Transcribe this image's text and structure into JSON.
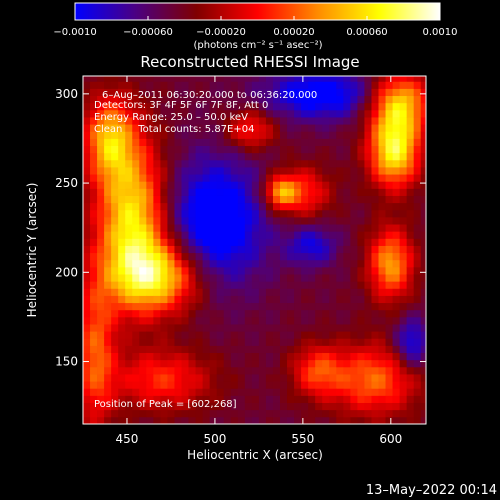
{
  "chart_data": {
    "type": "heatmap",
    "title": "Reconstructed RHESSI Image",
    "xlabel": "Heliocentric X (arcsec)",
    "ylabel": "Heliocentric Y (arcsec)",
    "xlim": [
      425,
      620
    ],
    "ylim": [
      115,
      310
    ],
    "xticks": [
      450,
      500,
      550,
      600
    ],
    "yticks": [
      150,
      200,
      250,
      300
    ],
    "colorbar": {
      "min": -0.001,
      "max": 0.001,
      "ticks": [
        "−0.0010",
        "−0.00060",
        "−0.00020",
        "0.00020",
        "0.00060",
        "0.0010"
      ],
      "tick_values": [
        -0.001,
        -0.0006,
        -0.0002,
        0.0002,
        0.0006,
        0.001
      ],
      "label": "(photons cm⁻² s⁻¹ asec⁻²)",
      "colors": [
        "#0000ff",
        "#4b0082",
        "#800000",
        "#ff0000",
        "#ff8c00",
        "#ffff00",
        "#ffffff"
      ]
    },
    "annotations": [
      "6–Aug–2011 06:30:20.000 to 06:36:20.000",
      "Detectors: 3F 4F 5F 6F 7F 8F, Att 0",
      "Energy Range: 25.0 – 50.0 keV",
      "Clean     Total counts: 5.87E+04",
      "Position of Peak = [602,268]"
    ],
    "peak": [
      602,
      268
    ],
    "emission_blobs": [
      {
        "x": 453,
        "y": 230,
        "sx": 14,
        "sy": 30,
        "v": 0.00095
      },
      {
        "x": 468,
        "y": 198,
        "sx": 18,
        "sy": 14,
        "v": 0.00085
      },
      {
        "x": 440,
        "y": 275,
        "sx": 10,
        "sy": 16,
        "v": 0.0007
      },
      {
        "x": 432,
        "y": 155,
        "sx": 8,
        "sy": 30,
        "v": 0.0005
      },
      {
        "x": 602,
        "y": 268,
        "sx": 10,
        "sy": 14,
        "v": 0.001
      },
      {
        "x": 605,
        "y": 295,
        "sx": 12,
        "sy": 12,
        "v": 0.0008
      },
      {
        "x": 600,
        "y": 205,
        "sx": 9,
        "sy": 14,
        "v": 0.0007
      },
      {
        "x": 590,
        "y": 140,
        "sx": 18,
        "sy": 14,
        "v": 0.00055
      },
      {
        "x": 470,
        "y": 140,
        "sx": 20,
        "sy": 12,
        "v": 0.0004
      },
      {
        "x": 520,
        "y": 280,
        "sx": 10,
        "sy": 8,
        "v": 0.0004
      },
      {
        "x": 548,
        "y": 245,
        "sx": 12,
        "sy": 10,
        "v": 0.00045
      },
      {
        "x": 537,
        "y": 245,
        "sx": 6,
        "sy": 6,
        "v": 0.0005
      },
      {
        "x": 558,
        "y": 145,
        "sx": 10,
        "sy": 10,
        "v": 0.0004
      },
      {
        "x": 500,
        "y": 228,
        "sx": 20,
        "sy": 25,
        "v": -0.0009
      },
      {
        "x": 560,
        "y": 300,
        "sx": 22,
        "sy": 10,
        "v": -0.0008
      },
      {
        "x": 555,
        "y": 215,
        "sx": 10,
        "sy": 8,
        "v": -0.0006
      },
      {
        "x": 612,
        "y": 160,
        "sx": 7,
        "sy": 10,
        "v": -0.0007
      }
    ]
  },
  "footer": {
    "timestamp": "13–May–2022 00:14"
  }
}
